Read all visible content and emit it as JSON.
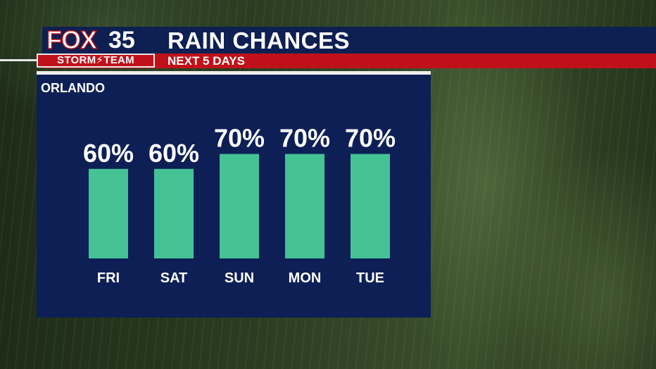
{
  "header": {
    "logo_fox": "FOX",
    "logo_number": "35",
    "logo_team": "STORM⚡TEAM",
    "title": "RAIN CHANCES",
    "subtitle": "NEXT 5 DAYS"
  },
  "panel": {
    "city": "ORLANDO"
  },
  "colors": {
    "title_bar": "#0e1f52",
    "sub_bar": "#c0111a",
    "panel": "#0d1f55",
    "bar": "#45c296"
  },
  "chart_data": {
    "type": "bar",
    "title": "RAIN CHANCES",
    "subtitle": "NEXT 5 DAYS",
    "categories": [
      "FRI",
      "SAT",
      "SUN",
      "MON",
      "TUE"
    ],
    "values": [
      60,
      60,
      70,
      70,
      70
    ],
    "value_labels": [
      "60%",
      "60%",
      "70%",
      "70%",
      "70%"
    ],
    "xlabel": "",
    "ylabel": "",
    "unit": "%",
    "grid": false
  }
}
